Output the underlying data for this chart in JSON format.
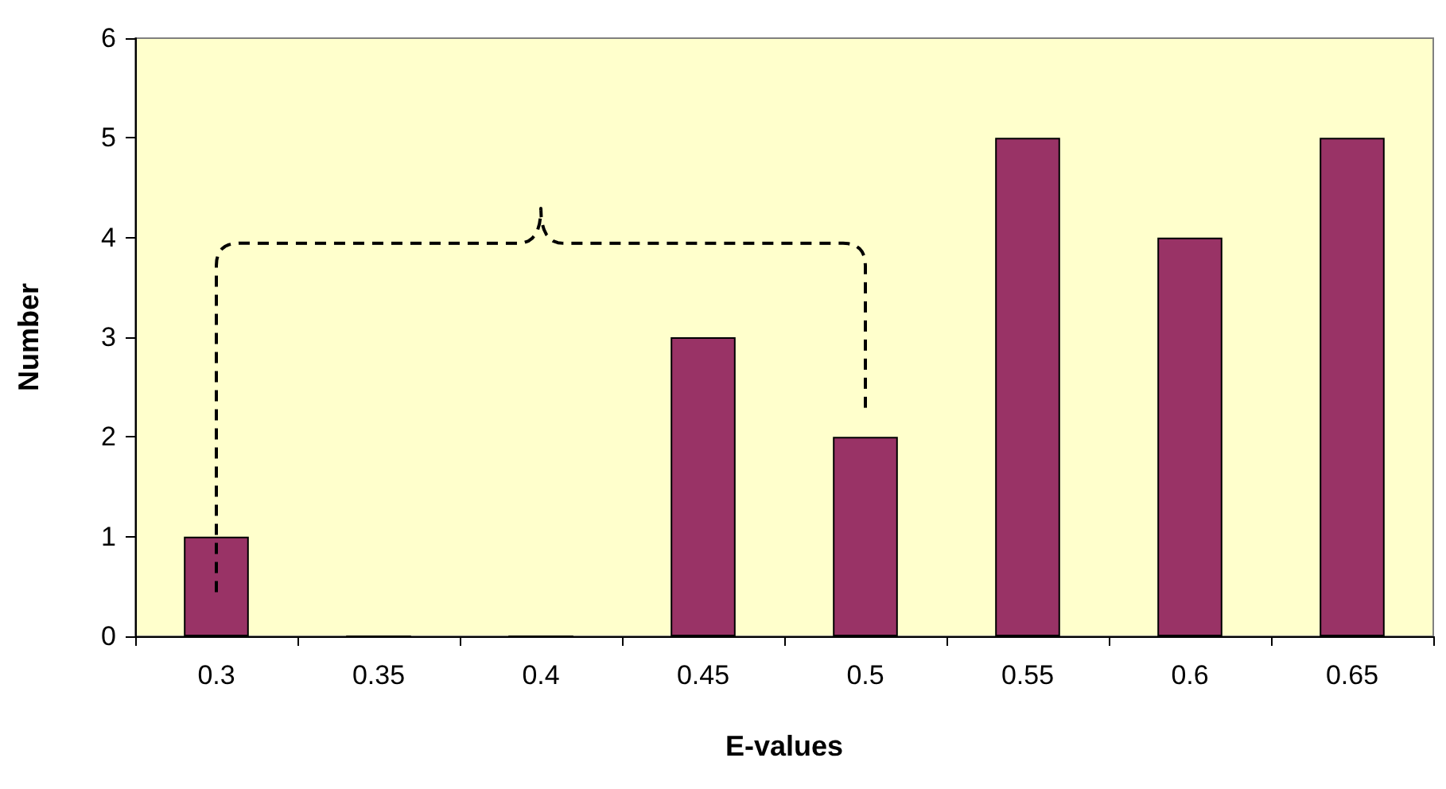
{
  "chart_data": {
    "type": "bar",
    "xlabel": "E-values",
    "ylabel": "Number",
    "categories": [
      "0.3",
      "0.35",
      "0.4",
      "0.45",
      "0.5",
      "0.55",
      "0.6",
      "0.65"
    ],
    "values": [
      1,
      0,
      0,
      3,
      2,
      5,
      4,
      5
    ],
    "color": "#993366",
    "ylim": [
      0,
      6
    ],
    "yticks": [
      0,
      1,
      2,
      3,
      4,
      5,
      6
    ],
    "grid": false
  }
}
